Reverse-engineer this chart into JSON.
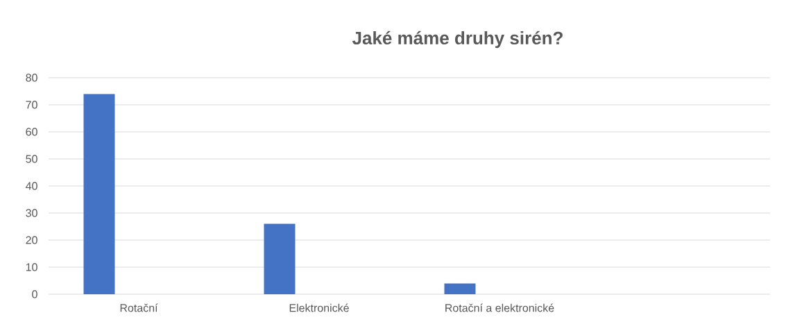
{
  "chart_data": {
    "type": "bar",
    "title": "Jaké máme druhy sirén?",
    "categories": [
      "Rotační",
      "Elektronické",
      "Rotační a elektronické",
      null
    ],
    "values": [
      74,
      26,
      4,
      null
    ],
    "color": "#4472c4",
    "ylim": [
      0,
      80
    ],
    "yticks": [
      0,
      10,
      20,
      30,
      40,
      50,
      60,
      70,
      80
    ],
    "grid": "y"
  }
}
